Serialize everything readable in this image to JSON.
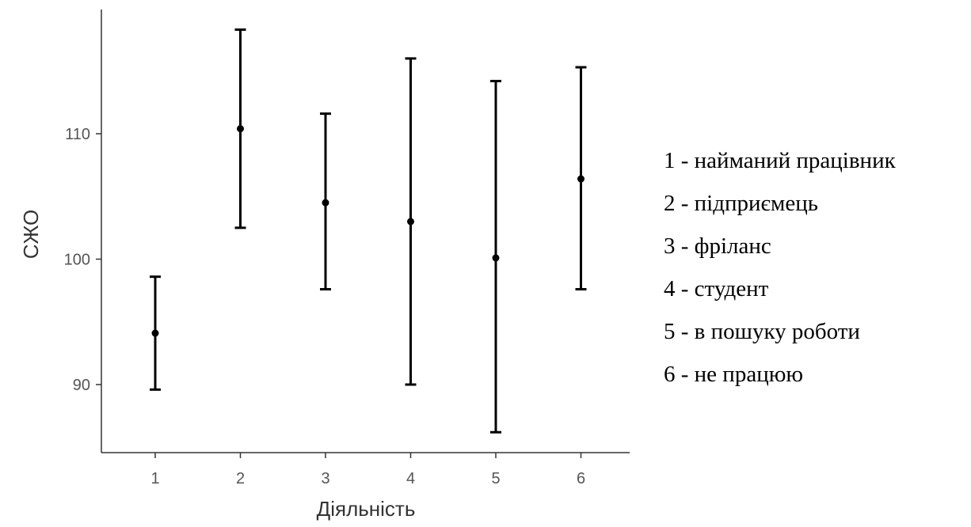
{
  "chart_data": {
    "type": "scatter",
    "title": "",
    "xlabel": "Діяльність",
    "ylabel": "СЖО",
    "categories": [
      "1",
      "2",
      "3",
      "4",
      "5",
      "6"
    ],
    "series": [
      {
        "mean": [
          94.1,
          110.4,
          104.5,
          103.0,
          100.1,
          106.4
        ],
        "lower": [
          89.6,
          102.5,
          97.6,
          90.0,
          86.2,
          97.6
        ],
        "upper": [
          98.6,
          118.3,
          111.6,
          116.0,
          114.2,
          115.3
        ]
      }
    ],
    "yticks": [
      90,
      100,
      110
    ],
    "ylim": [
      84.5,
      120
    ],
    "grid": false,
    "legend": [
      "1 - найманий працівник",
      "2 - підприємець",
      "3 - фріланс",
      "4 - студент",
      "5 - в пошуку роботи",
      "6 - не працюю"
    ],
    "legend_position": "right"
  }
}
